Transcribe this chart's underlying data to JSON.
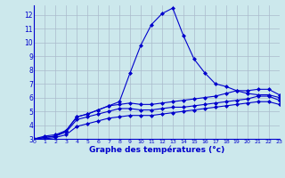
{
  "x": [
    0,
    1,
    2,
    3,
    4,
    5,
    6,
    7,
    8,
    9,
    10,
    11,
    12,
    13,
    14,
    15,
    16,
    17,
    18,
    19,
    20,
    21,
    22,
    23
  ],
  "line1": [
    3.0,
    3.2,
    3.3,
    3.6,
    4.6,
    4.8,
    5.1,
    5.4,
    5.7,
    7.8,
    9.8,
    11.3,
    12.1,
    12.5,
    10.5,
    8.8,
    7.8,
    7.0,
    6.8,
    6.5,
    6.3,
    6.2,
    6.2,
    6.0
  ],
  "line2": [
    3.0,
    3.1,
    3.2,
    3.6,
    4.6,
    4.8,
    5.1,
    5.4,
    5.5,
    5.6,
    5.5,
    5.5,
    5.6,
    5.7,
    5.8,
    5.9,
    6.0,
    6.1,
    6.3,
    6.5,
    6.5,
    6.6,
    6.6,
    6.2
  ],
  "line3": [
    3.0,
    3.1,
    3.2,
    3.5,
    4.4,
    4.6,
    4.8,
    5.0,
    5.2,
    5.2,
    5.1,
    5.1,
    5.2,
    5.3,
    5.3,
    5.4,
    5.5,
    5.6,
    5.7,
    5.8,
    5.9,
    6.1,
    6.1,
    5.8
  ],
  "line4": [
    3.0,
    3.0,
    3.1,
    3.3,
    3.9,
    4.1,
    4.3,
    4.5,
    4.6,
    4.7,
    4.7,
    4.7,
    4.8,
    4.9,
    5.0,
    5.1,
    5.2,
    5.3,
    5.4,
    5.5,
    5.6,
    5.7,
    5.7,
    5.5
  ],
  "bg_color": "#cce8ec",
  "line_color": "#0000cc",
  "grid_color": "#aabbcc",
  "xlabel": "Graphe des températures (°c)",
  "ylim_min": 3,
  "ylim_max": 12.7,
  "xlim_min": 0,
  "xlim_max": 23,
  "yticks": [
    3,
    4,
    5,
    6,
    7,
    8,
    9,
    10,
    11,
    12
  ],
  "xticks": [
    0,
    1,
    2,
    3,
    4,
    5,
    6,
    7,
    8,
    9,
    10,
    11,
    12,
    13,
    14,
    15,
    16,
    17,
    18,
    19,
    20,
    21,
    22,
    23
  ]
}
